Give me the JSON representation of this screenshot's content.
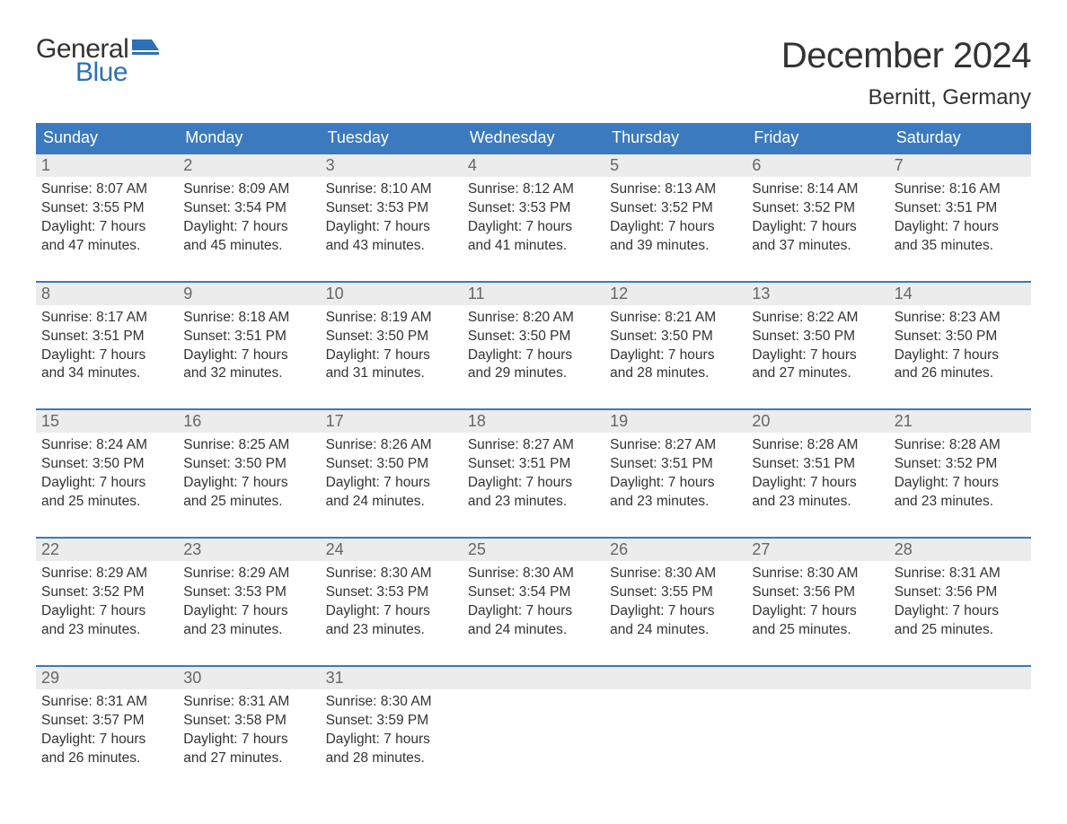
{
  "logo": {
    "line1": "General",
    "line2": "Blue",
    "icon_color": "#2d70b5",
    "text_color_general": "#333333",
    "text_color_blue": "#2d70b5"
  },
  "title": "December 2024",
  "location": "Bernitt, Germany",
  "colors": {
    "header_bg": "#3b7abf",
    "header_text": "#ffffff",
    "daynum_bg": "#ececec",
    "daynum_text": "#666666",
    "body_text": "#333333",
    "week_border": "#3b7abf",
    "page_bg": "#ffffff"
  },
  "fonts": {
    "title_size": 40,
    "location_size": 24,
    "weekday_size": 18,
    "daynum_size": 18,
    "body_size": 15.5
  },
  "weekdays": [
    "Sunday",
    "Monday",
    "Tuesday",
    "Wednesday",
    "Thursday",
    "Friday",
    "Saturday"
  ],
  "weeks": [
    [
      {
        "n": "1",
        "sunrise": "8:07 AM",
        "sunset": "3:55 PM",
        "dl1": "7 hours",
        "dl2": "47 minutes."
      },
      {
        "n": "2",
        "sunrise": "8:09 AM",
        "sunset": "3:54 PM",
        "dl1": "7 hours",
        "dl2": "45 minutes."
      },
      {
        "n": "3",
        "sunrise": "8:10 AM",
        "sunset": "3:53 PM",
        "dl1": "7 hours",
        "dl2": "43 minutes."
      },
      {
        "n": "4",
        "sunrise": "8:12 AM",
        "sunset": "3:53 PM",
        "dl1": "7 hours",
        "dl2": "41 minutes."
      },
      {
        "n": "5",
        "sunrise": "8:13 AM",
        "sunset": "3:52 PM",
        "dl1": "7 hours",
        "dl2": "39 minutes."
      },
      {
        "n": "6",
        "sunrise": "8:14 AM",
        "sunset": "3:52 PM",
        "dl1": "7 hours",
        "dl2": "37 minutes."
      },
      {
        "n": "7",
        "sunrise": "8:16 AM",
        "sunset": "3:51 PM",
        "dl1": "7 hours",
        "dl2": "35 minutes."
      }
    ],
    [
      {
        "n": "8",
        "sunrise": "8:17 AM",
        "sunset": "3:51 PM",
        "dl1": "7 hours",
        "dl2": "34 minutes."
      },
      {
        "n": "9",
        "sunrise": "8:18 AM",
        "sunset": "3:51 PM",
        "dl1": "7 hours",
        "dl2": "32 minutes."
      },
      {
        "n": "10",
        "sunrise": "8:19 AM",
        "sunset": "3:50 PM",
        "dl1": "7 hours",
        "dl2": "31 minutes."
      },
      {
        "n": "11",
        "sunrise": "8:20 AM",
        "sunset": "3:50 PM",
        "dl1": "7 hours",
        "dl2": "29 minutes."
      },
      {
        "n": "12",
        "sunrise": "8:21 AM",
        "sunset": "3:50 PM",
        "dl1": "7 hours",
        "dl2": "28 minutes."
      },
      {
        "n": "13",
        "sunrise": "8:22 AM",
        "sunset": "3:50 PM",
        "dl1": "7 hours",
        "dl2": "27 minutes."
      },
      {
        "n": "14",
        "sunrise": "8:23 AM",
        "sunset": "3:50 PM",
        "dl1": "7 hours",
        "dl2": "26 minutes."
      }
    ],
    [
      {
        "n": "15",
        "sunrise": "8:24 AM",
        "sunset": "3:50 PM",
        "dl1": "7 hours",
        "dl2": "25 minutes."
      },
      {
        "n": "16",
        "sunrise": "8:25 AM",
        "sunset": "3:50 PM",
        "dl1": "7 hours",
        "dl2": "25 minutes."
      },
      {
        "n": "17",
        "sunrise": "8:26 AM",
        "sunset": "3:50 PM",
        "dl1": "7 hours",
        "dl2": "24 minutes."
      },
      {
        "n": "18",
        "sunrise": "8:27 AM",
        "sunset": "3:51 PM",
        "dl1": "7 hours",
        "dl2": "23 minutes."
      },
      {
        "n": "19",
        "sunrise": "8:27 AM",
        "sunset": "3:51 PM",
        "dl1": "7 hours",
        "dl2": "23 minutes."
      },
      {
        "n": "20",
        "sunrise": "8:28 AM",
        "sunset": "3:51 PM",
        "dl1": "7 hours",
        "dl2": "23 minutes."
      },
      {
        "n": "21",
        "sunrise": "8:28 AM",
        "sunset": "3:52 PM",
        "dl1": "7 hours",
        "dl2": "23 minutes."
      }
    ],
    [
      {
        "n": "22",
        "sunrise": "8:29 AM",
        "sunset": "3:52 PM",
        "dl1": "7 hours",
        "dl2": "23 minutes."
      },
      {
        "n": "23",
        "sunrise": "8:29 AM",
        "sunset": "3:53 PM",
        "dl1": "7 hours",
        "dl2": "23 minutes."
      },
      {
        "n": "24",
        "sunrise": "8:30 AM",
        "sunset": "3:53 PM",
        "dl1": "7 hours",
        "dl2": "23 minutes."
      },
      {
        "n": "25",
        "sunrise": "8:30 AM",
        "sunset": "3:54 PM",
        "dl1": "7 hours",
        "dl2": "24 minutes."
      },
      {
        "n": "26",
        "sunrise": "8:30 AM",
        "sunset": "3:55 PM",
        "dl1": "7 hours",
        "dl2": "24 minutes."
      },
      {
        "n": "27",
        "sunrise": "8:30 AM",
        "sunset": "3:56 PM",
        "dl1": "7 hours",
        "dl2": "25 minutes."
      },
      {
        "n": "28",
        "sunrise": "8:31 AM",
        "sunset": "3:56 PM",
        "dl1": "7 hours",
        "dl2": "25 minutes."
      }
    ],
    [
      {
        "n": "29",
        "sunrise": "8:31 AM",
        "sunset": "3:57 PM",
        "dl1": "7 hours",
        "dl2": "26 minutes."
      },
      {
        "n": "30",
        "sunrise": "8:31 AM",
        "sunset": "3:58 PM",
        "dl1": "7 hours",
        "dl2": "27 minutes."
      },
      {
        "n": "31",
        "sunrise": "8:30 AM",
        "sunset": "3:59 PM",
        "dl1": "7 hours",
        "dl2": "28 minutes."
      },
      null,
      null,
      null,
      null
    ]
  ],
  "labels": {
    "sunrise": "Sunrise: ",
    "sunset": "Sunset: ",
    "daylight": "Daylight: ",
    "and": "and "
  }
}
